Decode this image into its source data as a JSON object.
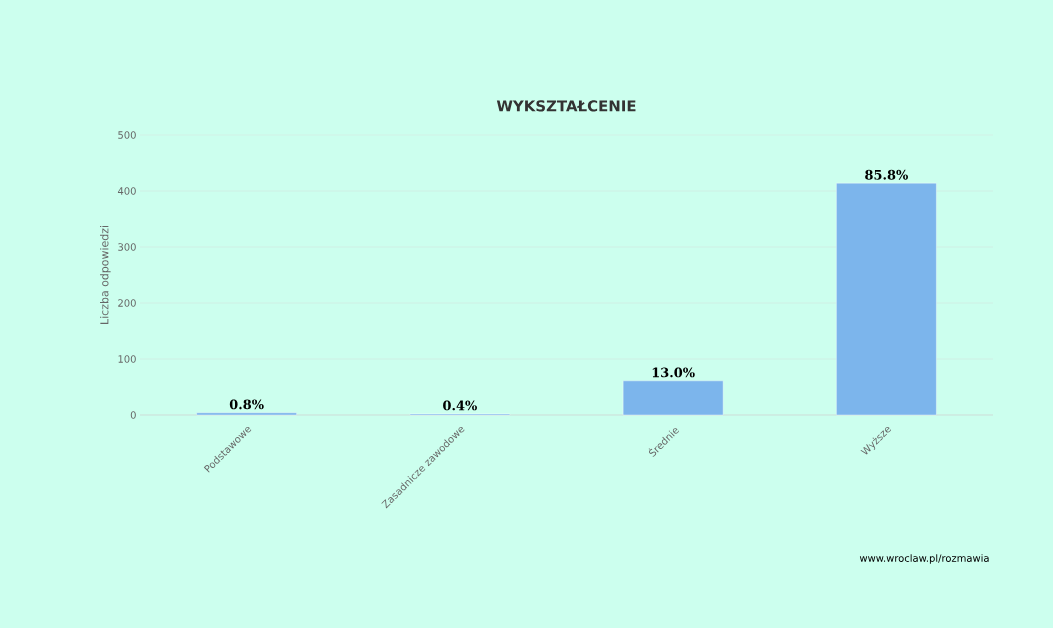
{
  "chart_data": {
    "type": "bar",
    "title": "WYKSZTAŁCENIE",
    "ylabel": "Liczba odpowiedzi",
    "categories": [
      "Podstawowe",
      "Zasadnicze zawodowe",
      "Średnie",
      "Wyższe"
    ],
    "values": [
      4,
      2,
      61,
      414
    ],
    "color": "#7cb5ec",
    "ylim": [
      0,
      500
    ],
    "yticks": [
      0,
      100,
      200,
      300,
      400,
      500
    ],
    "grid": "y",
    "annotations": [
      {
        "text": "0.8%",
        "x": "Podstawowe",
        "y": 4
      },
      {
        "text": "0.4%",
        "x": "Zasadnicze zawodowe",
        "y": 2
      },
      {
        "text": "13.0%",
        "x": "Średnie",
        "y": 61
      },
      {
        "text": "85.8%",
        "x": "Wyższe",
        "y": 414
      },
      "www.wroclaw.pl/rozmawia"
    ]
  }
}
